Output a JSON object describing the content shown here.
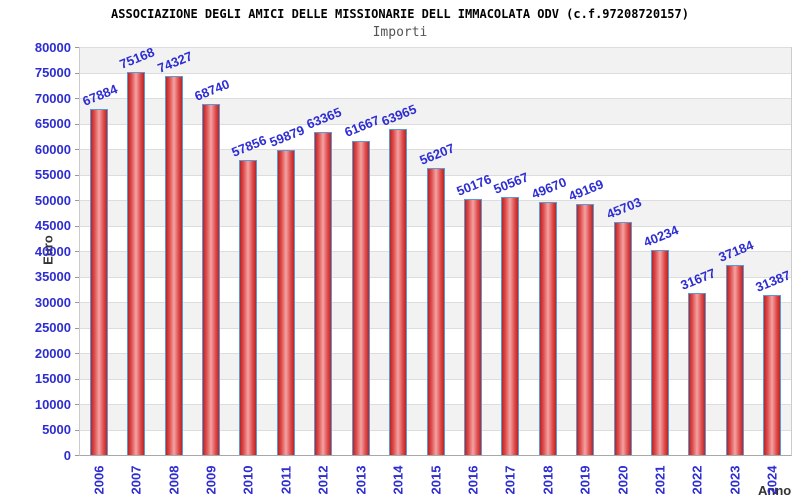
{
  "header": {
    "title": "ASSOCIAZIONE DEGLI AMICI DELLE MISSIONARIE DELL IMMACOLATA ODV (c.f.97208720157)",
    "subtitle": "Importi"
  },
  "chart_data": {
    "type": "bar",
    "title": "ASSOCIAZIONE DEGLI AMICI DELLE MISSIONARIE DELL IMMACOLATA ODV (c.f.97208720157)",
    "subtitle": "Importi",
    "xlabel": "Anno",
    "ylabel": "Euro",
    "categories": [
      "2006",
      "2007",
      "2008",
      "2009",
      "2010",
      "2011",
      "2012",
      "2013",
      "2014",
      "2015",
      "2016",
      "2017",
      "2018",
      "2019",
      "2020",
      "2021",
      "2022",
      "2023",
      "2024"
    ],
    "values": [
      67884,
      75168,
      74327,
      68740,
      57856,
      59879,
      63365,
      61667,
      63965,
      56207,
      50176,
      50567,
      49670,
      49169,
      45703,
      40234,
      31677,
      37184,
      31387
    ],
    "ylim": [
      0,
      80000
    ],
    "ytick_step": 5000,
    "grid": "horizontal",
    "legend": null,
    "colors": {
      "label_blue": "#2d2dd2",
      "bar_border": "#5b9bd5",
      "bar_edge": "#b92626",
      "bar_center": "#f4a2a2",
      "band_gray": "#f2f2f2",
      "band_white": "#ffffff",
      "gridline": "#dddddd",
      "axis_text": "#333333"
    }
  }
}
